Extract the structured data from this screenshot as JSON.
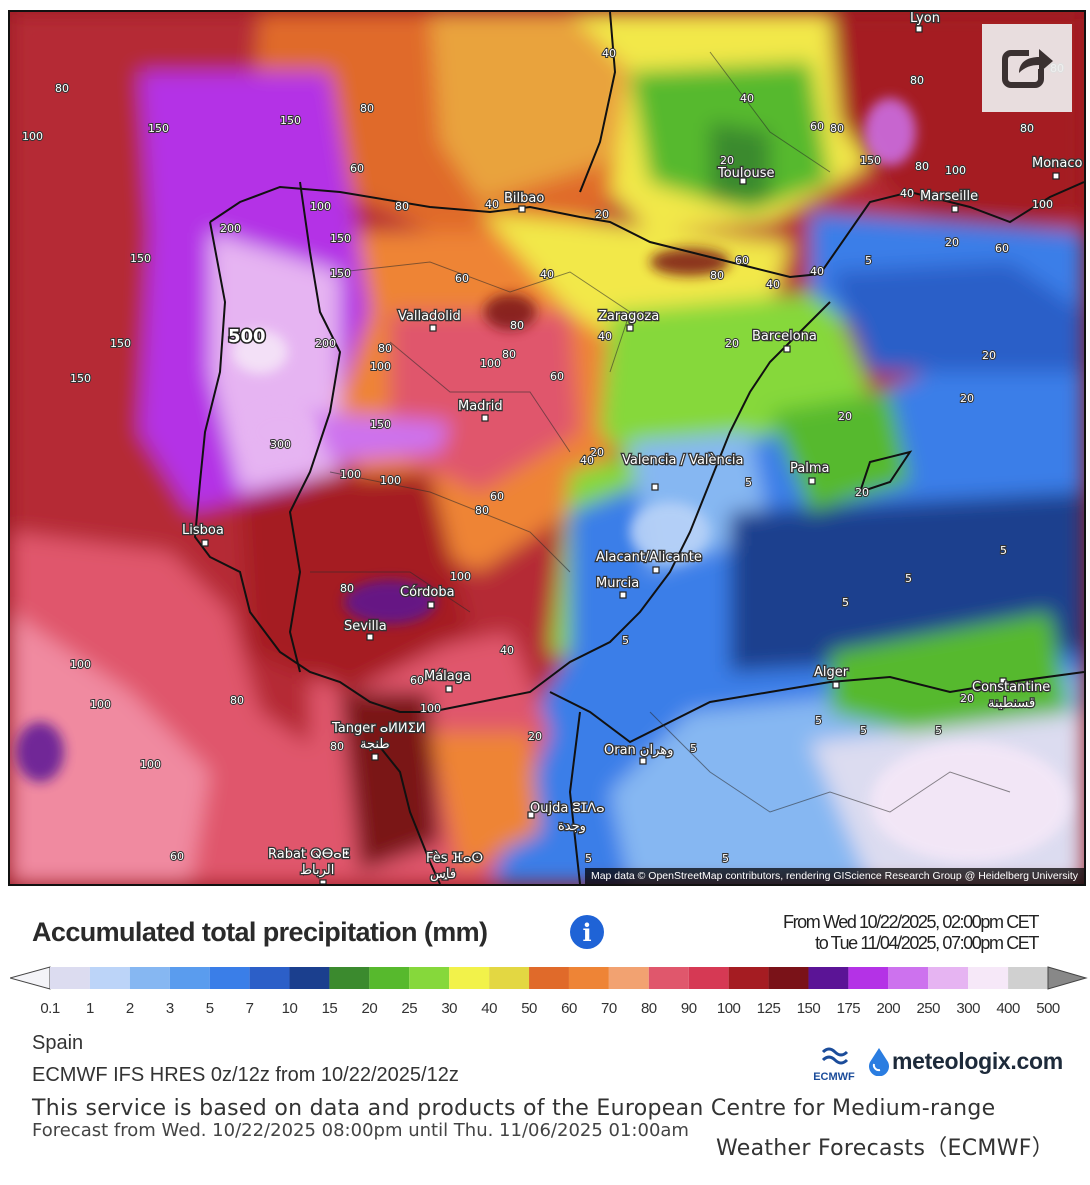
{
  "map": {
    "attribution": "Map data © OpenStreetMap contributors, rendering GIScience Research Group @ Heidelberg University",
    "share_icon": "share-icon",
    "cities": [
      {
        "name": "Lyon"
      },
      {
        "name": "Toulouse"
      },
      {
        "name": "Marseille"
      },
      {
        "name": "Monaco"
      },
      {
        "name": "Bilbao"
      },
      {
        "name": "Valladolid"
      },
      {
        "name": "Zaragoza"
      },
      {
        "name": "Barcelona"
      },
      {
        "name": "Madrid"
      },
      {
        "name": "Valencia / València"
      },
      {
        "name": "Palma"
      },
      {
        "name": "Lisboa"
      },
      {
        "name": "Alacant/Alicante"
      },
      {
        "name": "Murcia"
      },
      {
        "name": "Córdoba"
      },
      {
        "name": "Sevilla"
      },
      {
        "name": "Málaga"
      },
      {
        "name": "Alger"
      },
      {
        "name": "Constantine"
      },
      {
        "name": "قسنطينة"
      },
      {
        "name": "Tanger ⴰⵍⵍⵉⵍ"
      },
      {
        "name": "طنجة"
      },
      {
        "name": "Oran وهران"
      },
      {
        "name": "Oujda ⵓⵊⴷⴰ"
      },
      {
        "name": "وجدة"
      },
      {
        "name": "Rabat ⵕⴱⴰⵟ"
      },
      {
        "name": "الرباط"
      },
      {
        "name": "Fès ⴼⴰⵙ"
      },
      {
        "name": "فاس"
      }
    ],
    "contour_values": [
      "500",
      "300",
      "200",
      "150",
      "100",
      "80",
      "60",
      "40",
      "20",
      "5"
    ]
  },
  "title": "Accumulated total precipitation (mm)",
  "info_icon": "info-icon",
  "range": {
    "from": "From Wed 10/22/2025, 02:00pm CET",
    "to": "to Tue 11/04/2025, 07:00pm CET"
  },
  "legend": {
    "colors": [
      "#dcdcf0",
      "#bcd4f8",
      "#86b7f2",
      "#5a9cee",
      "#3a7ee8",
      "#2c5fc8",
      "#1b3f8e",
      "#3b8a2e",
      "#57b92d",
      "#86d83b",
      "#f2f24a",
      "#e3d742",
      "#e06a2a",
      "#ee8436",
      "#f2a271",
      "#e0576c",
      "#d63954",
      "#a51c22",
      "#7a1218",
      "#5b1496",
      "#b432e6",
      "#cd72ee",
      "#e6b4f2",
      "#f6e8f8",
      "#d0d0d0"
    ],
    "ticks": [
      "0.1",
      "1",
      "2",
      "3",
      "5",
      "7",
      "10",
      "15",
      "20",
      "25",
      "30",
      "40",
      "50",
      "60",
      "70",
      "80",
      "90",
      "100",
      "125",
      "150",
      "175",
      "200",
      "250",
      "300",
      "400",
      "500"
    ]
  },
  "region": "Spain",
  "model": "ECMWF IFS HRES 0z/12z from 10/22/2025/12z",
  "service": "This service is based on data and products of the European Centre for Medium-range",
  "service_end": "Weather Forecasts（ECMWF）",
  "forecast": "Forecast from Wed. 10/22/2025 08:00pm until Thu. 11/06/2025 01:00am",
  "logos": {
    "ecmwf": "ECMWF",
    "meteologix": "meteologix.com"
  }
}
